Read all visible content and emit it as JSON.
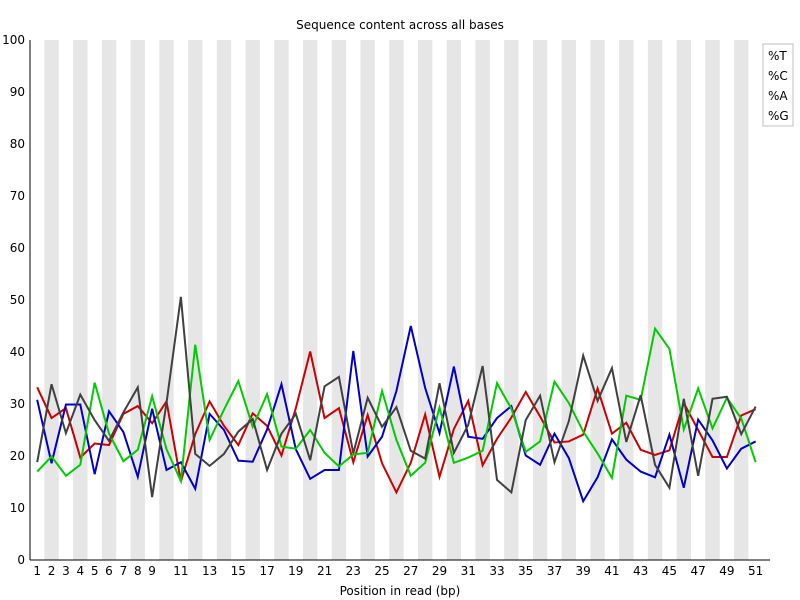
{
  "chart_data": {
    "type": "line",
    "title": "Sequence content across all bases",
    "xlabel": "Position in read (bp)",
    "ylabel": "",
    "ylim": [
      0,
      100
    ],
    "yticks": [
      0,
      10,
      20,
      30,
      40,
      50,
      60,
      70,
      80,
      90,
      100
    ],
    "x": [
      1,
      2,
      3,
      4,
      5,
      6,
      7,
      8,
      9,
      10,
      11,
      12,
      13,
      14,
      15,
      16,
      17,
      18,
      19,
      20,
      21,
      22,
      23,
      24,
      25,
      26,
      27,
      28,
      29,
      30,
      31,
      32,
      33,
      34,
      35,
      36,
      37,
      38,
      39,
      40,
      41,
      42,
      43,
      44,
      45,
      46,
      47,
      48,
      49,
      50,
      51
    ],
    "xtick_labels": [
      "1",
      "2",
      "3",
      "4",
      "5",
      "6",
      "7",
      "8",
      "9",
      "11",
      "13",
      "15",
      "17",
      "19",
      "21",
      "23",
      "25",
      "27",
      "29",
      "31",
      "33",
      "35",
      "37",
      "39",
      "41",
      "43",
      "45",
      "47",
      "49",
      "51"
    ],
    "xtick_positions": [
      1,
      2,
      3,
      4,
      5,
      6,
      7,
      8,
      9,
      11,
      13,
      15,
      17,
      19,
      21,
      23,
      25,
      27,
      29,
      31,
      33,
      35,
      37,
      39,
      41,
      43,
      45,
      47,
      49,
      51
    ],
    "grid": "alternating vertical bands",
    "legend": "top-right",
    "series": [
      {
        "name": "%T",
        "color": "#cc0000",
        "values": [
          33.2,
          27.3,
          29.2,
          19.7,
          22.4,
          22.1,
          28.1,
          29.6,
          26.3,
          30.5,
          15.1,
          24.2,
          30.5,
          25.8,
          22.1,
          28.2,
          25.8,
          20.1,
          29.2,
          40.1,
          27.3,
          29.2,
          18.8,
          27.9,
          18.6,
          13.0,
          18.7,
          28.0,
          16.0,
          25.2,
          30.6,
          18.2,
          23.3,
          27.4,
          32.3,
          27.6,
          22.6,
          22.8,
          24.1,
          33.0,
          24.3,
          26.4,
          21.2,
          20.2,
          21.1,
          30.2,
          25.0,
          19.8,
          19.8,
          27.8,
          29.0
        ]
      },
      {
        "name": "%C",
        "color": "#0000cc",
        "values": [
          30.8,
          18.6,
          29.9,
          29.9,
          16.5,
          28.6,
          24.6,
          16.0,
          29.1,
          17.3,
          18.8,
          13.7,
          28.1,
          25.0,
          19.1,
          18.9,
          25.1,
          33.8,
          21.3,
          15.6,
          17.3,
          17.3,
          40.2,
          19.9,
          23.7,
          32.5,
          45.0,
          33.1,
          24.4,
          37.2,
          23.7,
          23.3,
          27.3,
          29.6,
          20.1,
          18.3,
          24.3,
          19.6,
          11.3,
          15.9,
          23.2,
          19.3,
          17.0,
          15.9,
          24.1,
          13.9,
          27.0,
          23.0,
          17.6,
          21.4,
          22.8
        ]
      },
      {
        "name": "%A",
        "color": "#00cc00",
        "values": [
          17.0,
          19.9,
          16.2,
          18.3,
          34.1,
          24.3,
          19.0,
          21.2,
          31.5,
          21.3,
          15.2,
          41.4,
          23.1,
          28.9,
          34.4,
          25.6,
          31.9,
          21.8,
          21.4,
          25.0,
          20.6,
          18.0,
          20.3,
          20.6,
          32.5,
          23.1,
          16.2,
          18.7,
          29.3,
          18.7,
          19.7,
          21.0,
          34.0,
          29.1,
          20.8,
          22.8,
          34.3,
          30.2,
          24.7,
          20.5,
          15.8,
          31.6,
          30.8,
          44.5,
          40.6,
          25.1,
          33.0,
          25.3,
          31.2,
          27.2,
          18.8
        ]
      },
      {
        "name": "%G",
        "color": "#404040",
        "values": [
          18.8,
          33.8,
          24.4,
          31.8,
          26.9,
          22.9,
          28.4,
          33.2,
          12.1,
          30.2,
          50.6,
          20.4,
          18.1,
          20.4,
          24.7,
          27.1,
          17.3,
          24.3,
          28.1,
          19.2,
          33.4,
          35.2,
          20.5,
          31.2,
          25.6,
          29.4,
          21.0,
          19.5,
          34.0,
          20.6,
          26.0,
          37.3,
          15.4,
          13.0,
          26.9,
          31.6,
          18.8,
          26.7,
          39.3,
          30.6,
          36.9,
          22.7,
          31.7,
          18.3,
          13.9,
          31.0,
          16.2,
          31.0,
          31.4,
          24.2,
          29.5
        ]
      }
    ]
  }
}
